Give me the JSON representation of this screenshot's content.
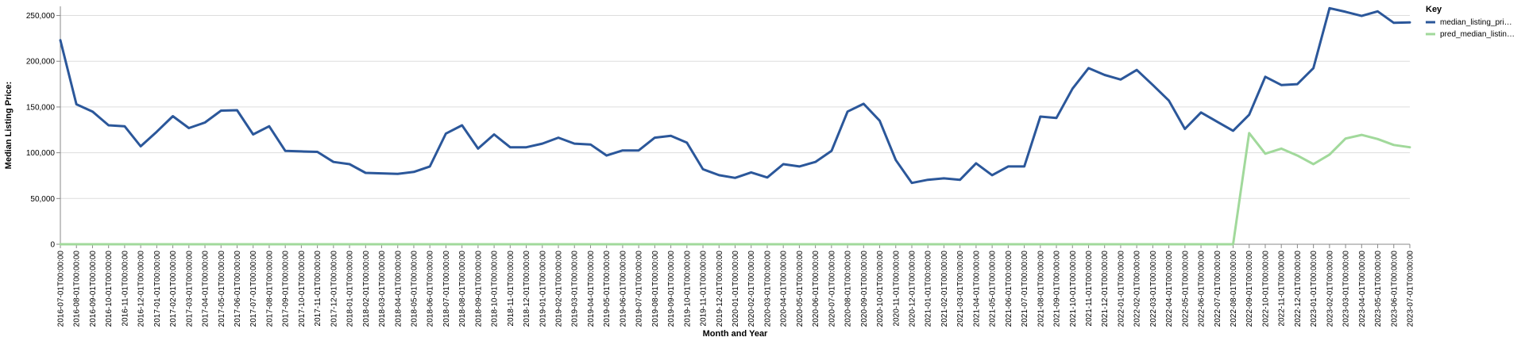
{
  "chart_data": {
    "type": "line",
    "xlabel": "Month and Year",
    "ylabel": "Median Listing Price:",
    "ylim": [
      0,
      260000
    ],
    "yticks": [
      0,
      50000,
      100000,
      150000,
      200000,
      250000
    ],
    "ytick_labels": [
      "0",
      "50,000",
      "100,000",
      "150,000",
      "200,000",
      "250,000"
    ],
    "grid": "horizontal",
    "legend": {
      "title": "Key",
      "placement": "right",
      "entries": [
        "median_listing_pri…",
        "pred_median_listin…"
      ]
    },
    "x": [
      "2016-07-01T00:00:00",
      "2016-08-01T00:00:00",
      "2016-09-01T00:00:00",
      "2016-10-01T00:00:00",
      "2016-11-01T00:00:00",
      "2016-12-01T00:00:00",
      "2017-01-01T00:00:00",
      "2017-02-01T00:00:00",
      "2017-03-01T00:00:00",
      "2017-04-01T00:00:00",
      "2017-05-01T00:00:00",
      "2017-06-01T00:00:00",
      "2017-07-01T00:00:00",
      "2017-08-01T00:00:00",
      "2017-09-01T00:00:00",
      "2017-10-01T00:00:00",
      "2017-11-01T00:00:00",
      "2017-12-01T00:00:00",
      "2018-01-01T00:00:00",
      "2018-02-01T00:00:00",
      "2018-03-01T00:00:00",
      "2018-04-01T00:00:00",
      "2018-05-01T00:00:00",
      "2018-06-01T00:00:00",
      "2018-07-01T00:00:00",
      "2018-08-01T00:00:00",
      "2018-09-01T00:00:00",
      "2018-10-01T00:00:00",
      "2018-11-01T00:00:00",
      "2018-12-01T00:00:00",
      "2019-01-01T00:00:00",
      "2019-02-01T00:00:00",
      "2019-03-01T00:00:00",
      "2019-04-01T00:00:00",
      "2019-05-01T00:00:00",
      "2019-06-01T00:00:00",
      "2019-07-01T00:00:00",
      "2019-08-01T00:00:00",
      "2019-09-01T00:00:00",
      "2019-10-01T00:00:00",
      "2019-11-01T00:00:00",
      "2019-12-01T00:00:00",
      "2020-01-01T00:00:00",
      "2020-02-01T00:00:00",
      "2020-03-01T00:00:00",
      "2020-04-01T00:00:00",
      "2020-05-01T00:00:00",
      "2020-06-01T00:00:00",
      "2020-07-01T00:00:00",
      "2020-08-01T00:00:00",
      "2020-09-01T00:00:00",
      "2020-10-01T00:00:00",
      "2020-11-01T00:00:00",
      "2020-12-01T00:00:00",
      "2021-01-01T00:00:00",
      "2021-02-01T00:00:00",
      "2021-03-01T00:00:00",
      "2021-04-01T00:00:00",
      "2021-05-01T00:00:00",
      "2021-06-01T00:00:00",
      "2021-07-01T00:00:00",
      "2021-08-01T00:00:00",
      "2021-09-01T00:00:00",
      "2021-10-01T00:00:00",
      "2021-11-01T00:00:00",
      "2021-12-01T00:00:00",
      "2022-01-01T00:00:00",
      "2022-02-01T00:00:00",
      "2022-03-01T00:00:00",
      "2022-04-01T00:00:00",
      "2022-05-01T00:00:00",
      "2022-06-01T00:00:00",
      "2022-07-01T00:00:00",
      "2022-08-01T00:00:00",
      "2022-09-01T00:00:00",
      "2022-10-01T00:00:00",
      "2022-11-01T00:00:00",
      "2022-12-01T00:00:00",
      "2023-01-01T00:00:00",
      "2023-02-01T00:00:00",
      "2023-03-01T00:00:00",
      "2023-04-01T00:00:00",
      "2023-05-01T00:00:00",
      "2023-06-01T00:00:00",
      "2023-07-01T00:00:00"
    ],
    "series": [
      {
        "name": "median_listing_pri…",
        "color": "#2b579a",
        "values": [
          223000,
          153000,
          145000,
          130000,
          129000,
          107000,
          123000,
          140000,
          127000,
          133000,
          146000,
          146500,
          120000,
          129000,
          102000,
          101500,
          101000,
          90000,
          87500,
          78000,
          77500,
          77000,
          79000,
          85000,
          121000,
          130000,
          104500,
          120000,
          106000,
          106000,
          110000,
          116500,
          110000,
          109000,
          97000,
          102500,
          102500,
          116500,
          118500,
          111000,
          82000,
          75500,
          72500,
          78500,
          73000,
          87500,
          85000,
          90000,
          102000,
          145000,
          153500,
          135000,
          92000,
          67000,
          70500,
          72000,
          70500,
          88500,
          75500,
          85000,
          85000,
          139500,
          138000,
          170000,
          192500,
          185000,
          180000,
          190500,
          174000,
          157000,
          126000,
          144000,
          134000,
          124000,
          141500,
          183000,
          174000,
          175000,
          192500,
          258000,
          254000,
          249500,
          254500,
          242000,
          242500
        ]
      },
      {
        "name": "pred_median_listin…",
        "color": "#a1d99b",
        "values": [
          0,
          0,
          0,
          0,
          0,
          0,
          0,
          0,
          0,
          0,
          0,
          0,
          0,
          0,
          0,
          0,
          0,
          0,
          0,
          0,
          0,
          0,
          0,
          0,
          0,
          0,
          0,
          0,
          0,
          0,
          0,
          0,
          0,
          0,
          0,
          0,
          0,
          0,
          0,
          0,
          0,
          0,
          0,
          0,
          0,
          0,
          0,
          0,
          0,
          0,
          0,
          0,
          0,
          0,
          0,
          0,
          0,
          0,
          0,
          0,
          0,
          0,
          0,
          0,
          0,
          0,
          0,
          0,
          0,
          0,
          0,
          0,
          0,
          0,
          121500,
          99000,
          104500,
          97000,
          87500,
          98000,
          115500,
          119500,
          115000,
          108500,
          106000
        ]
      }
    ]
  }
}
